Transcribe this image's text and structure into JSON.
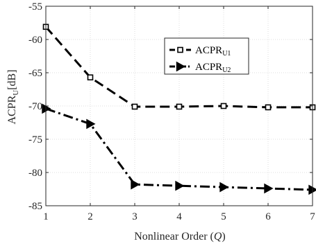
{
  "chart_data": {
    "type": "line",
    "xlabel_main": "Nonlinear Order (",
    "xlabel_var": "Q",
    "xlabel_close": ")",
    "ylabel_main": "ACPR",
    "ylabel_sub": "U",
    "ylabel_unit": "[dB]",
    "x": [
      1,
      2,
      3,
      4,
      5,
      6,
      7
    ],
    "xlim": [
      1,
      7
    ],
    "ylim": [
      -85,
      -55
    ],
    "xticks": [
      "1",
      "2",
      "3",
      "4",
      "5",
      "6",
      "7"
    ],
    "yticks": [
      "-55",
      "-60",
      "-65",
      "-70",
      "-75",
      "-80",
      "-85"
    ],
    "grid": true,
    "legend_position": "upper-right-inner",
    "series": [
      {
        "name_main": "ACPR",
        "name_sub": "U1",
        "marker": "square",
        "line_style": "dashed",
        "color": "#000000",
        "values": [
          -58.1,
          -65.7,
          -70.1,
          -70.1,
          -70.0,
          -70.2,
          -70.2
        ]
      },
      {
        "name_main": "ACPR",
        "name_sub": "U2",
        "marker": "triangle-right",
        "line_style": "dash-dot",
        "color": "#000000",
        "values": [
          -70.4,
          -72.7,
          -81.8,
          -82.0,
          -82.2,
          -82.4,
          -82.6
        ]
      }
    ]
  }
}
